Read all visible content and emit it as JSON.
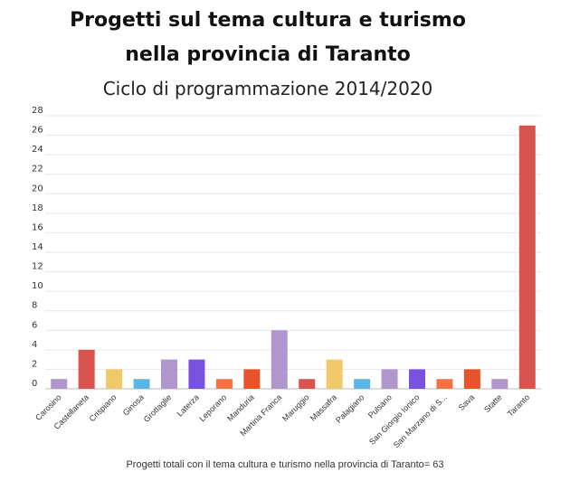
{
  "title_lines": [
    "Progetti sul tema cultura e turismo",
    "nella provincia di Taranto"
  ],
  "subtitle": "Ciclo di programmazione 2014/2020",
  "footnote": "Progetti totali con il tema cultura e turismo nella provincia di Taranto= 63",
  "chart_data": {
    "type": "bar",
    "title": "Progetti sul tema cultura e turismo nella provincia di Taranto",
    "subtitle": "Ciclo di programmazione 2014/2020",
    "xlabel": "",
    "ylabel": "",
    "ylim": [
      0,
      28
    ],
    "yticks": [
      0,
      2,
      4,
      6,
      8,
      10,
      12,
      14,
      16,
      18,
      20,
      22,
      24,
      26,
      28
    ],
    "grid": true,
    "legend": "none",
    "categories": [
      "Carosino",
      "Castellaneta",
      "Crispiano",
      "Ginosa",
      "Grottaglie",
      "Laterza",
      "Leporano",
      "Manduria",
      "Martina Franca",
      "Maruggio",
      "Massafra",
      "Palagiano",
      "Pulsano",
      "San Giorgio Ionico",
      "San Marzano di S...",
      "Sava",
      "Statte",
      "Taranto"
    ],
    "values": [
      1,
      4,
      2,
      1,
      3,
      3,
      1,
      2,
      6,
      1,
      3,
      1,
      2,
      2,
      1,
      2,
      1,
      27
    ],
    "colors": [
      "#b096cc",
      "#d9534f",
      "#f0c96a",
      "#5bb5e6",
      "#b096cc",
      "#7a52e0",
      "#f27246",
      "#e8532a",
      "#b096cc",
      "#d9534f",
      "#f0c96a",
      "#5bb5e6",
      "#b096cc",
      "#7a52e0",
      "#f27246",
      "#e8532a",
      "#b096cc",
      "#d9534f"
    ]
  }
}
